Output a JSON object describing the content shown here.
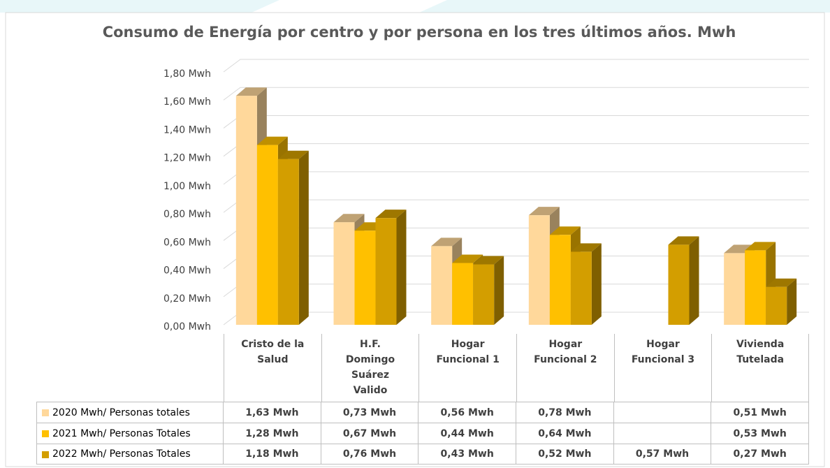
{
  "chart_data": {
    "type": "bar3d",
    "title": "Consumo de Energía por centro y por persona en los tres últimos años. Mwh",
    "categories": [
      "Cristo de la Salud",
      "H.F. Domingo Suárez Valido",
      "Hogar Funcional 1",
      "Hogar Funcional 2",
      "Hogar Funcional 3",
      "Vivienda Tutelada"
    ],
    "series": [
      {
        "name": "2020 Mwh/ Personas totales",
        "color": "#FFD89B",
        "values": [
          1.63,
          0.73,
          0.56,
          0.78,
          null,
          0.51
        ],
        "value_labels": [
          "1,63 Mwh",
          "0,73 Mwh",
          "0,56 Mwh",
          "0,78 Mwh",
          null,
          "0,51 Mwh"
        ]
      },
      {
        "name": "2021 Mwh/ Personas Totales",
        "color": "#FFC000",
        "values": [
          1.28,
          0.67,
          0.44,
          0.64,
          null,
          0.53
        ],
        "value_labels": [
          "1,28 Mwh",
          "0,67 Mwh",
          "0,44 Mwh",
          "0,64 Mwh",
          null,
          "0,53 Mwh"
        ]
      },
      {
        "name": "2022 Mwh/ Personas Totales",
        "color": "#D39E00",
        "values": [
          1.18,
          0.76,
          0.43,
          0.52,
          0.57,
          0.27
        ],
        "value_labels": [
          "1,18 Mwh",
          "0,76 Mwh",
          "0,43 Mwh",
          "0,52 Mwh",
          "0,57 Mwh",
          "0,27 Mwh"
        ]
      }
    ],
    "ylim": [
      0,
      1.8
    ],
    "yticks": [
      {
        "value": 0,
        "label": "0,00 Mwh"
      },
      {
        "value": 0.2,
        "label": "0,20 Mwh"
      },
      {
        "value": 0.4,
        "label": "0,40 Mwh"
      },
      {
        "value": 0.6,
        "label": "0,60 Mwh"
      },
      {
        "value": 0.8,
        "label": "0,80 Mwh"
      },
      {
        "value": 1.0,
        "label": "1,00 Mwh"
      },
      {
        "value": 1.2,
        "label": "1,20 Mwh"
      },
      {
        "value": 1.4,
        "label": "1,40 Mwh"
      },
      {
        "value": 1.6,
        "label": "1,60 Mwh"
      },
      {
        "value": 1.8,
        "label": "1,80 Mwh"
      }
    ],
    "grid": true
  }
}
